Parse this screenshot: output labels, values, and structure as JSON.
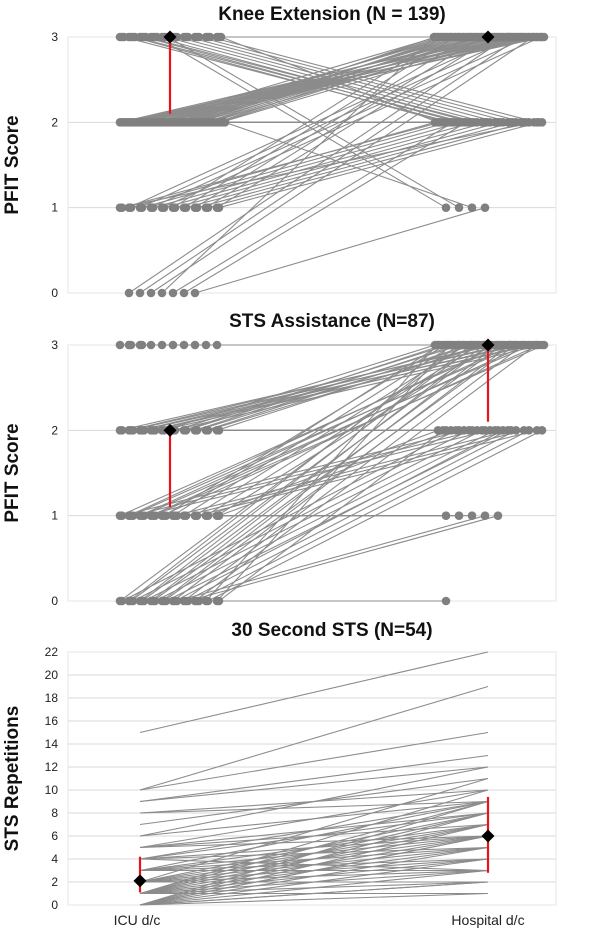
{
  "chart_data": [
    {
      "type": "line",
      "title": "Knee Extension (N = 139)",
      "ylabel": "PFIT Score",
      "xlabel": "",
      "x_categories": [
        "ICU d/c",
        "Hospital d/c"
      ],
      "ylim": [
        0,
        3
      ],
      "yticks": [
        0,
        1,
        2,
        3
      ],
      "grid": true,
      "paired_series": [
        [
          3,
          3
        ],
        [
          3,
          3
        ],
        [
          3,
          3
        ],
        [
          3,
          3
        ],
        [
          3,
          3
        ],
        [
          3,
          3
        ],
        [
          3,
          3
        ],
        [
          3,
          3
        ],
        [
          3,
          3
        ],
        [
          3,
          3
        ],
        [
          3,
          3
        ],
        [
          3,
          3
        ],
        [
          3,
          3
        ],
        [
          3,
          3
        ],
        [
          3,
          3
        ],
        [
          3,
          3
        ],
        [
          3,
          3
        ],
        [
          3,
          3
        ],
        [
          3,
          3
        ],
        [
          3,
          3
        ],
        [
          3,
          2
        ],
        [
          3,
          2
        ],
        [
          3,
          2
        ],
        [
          3,
          2
        ],
        [
          3,
          2
        ],
        [
          3,
          2
        ],
        [
          3,
          2
        ],
        [
          3,
          2
        ],
        [
          3,
          2
        ],
        [
          3,
          2
        ],
        [
          3,
          2
        ],
        [
          3,
          2
        ],
        [
          3,
          1
        ],
        [
          3,
          1
        ],
        [
          2,
          3
        ],
        [
          2,
          3
        ],
        [
          2,
          3
        ],
        [
          2,
          3
        ],
        [
          2,
          3
        ],
        [
          2,
          3
        ],
        [
          2,
          3
        ],
        [
          2,
          3
        ],
        [
          2,
          3
        ],
        [
          2,
          3
        ],
        [
          2,
          3
        ],
        [
          2,
          3
        ],
        [
          2,
          3
        ],
        [
          2,
          3
        ],
        [
          2,
          3
        ],
        [
          2,
          3
        ],
        [
          2,
          3
        ],
        [
          2,
          3
        ],
        [
          2,
          3
        ],
        [
          2,
          3
        ],
        [
          2,
          3
        ],
        [
          2,
          3
        ],
        [
          2,
          3
        ],
        [
          2,
          3
        ],
        [
          2,
          3
        ],
        [
          2,
          3
        ],
        [
          2,
          3
        ],
        [
          2,
          3
        ],
        [
          2,
          3
        ],
        [
          2,
          3
        ],
        [
          2,
          3
        ],
        [
          2,
          3
        ],
        [
          2,
          3
        ],
        [
          2,
          3
        ],
        [
          2,
          3
        ],
        [
          2,
          3
        ],
        [
          2,
          2
        ],
        [
          2,
          2
        ],
        [
          2,
          2
        ],
        [
          2,
          2
        ],
        [
          2,
          2
        ],
        [
          2,
          2
        ],
        [
          2,
          2
        ],
        [
          2,
          2
        ],
        [
          2,
          2
        ],
        [
          2,
          2
        ],
        [
          2,
          2
        ],
        [
          2,
          2
        ],
        [
          2,
          1
        ],
        [
          1,
          3
        ],
        [
          1,
          3
        ],
        [
          1,
          3
        ],
        [
          1,
          3
        ],
        [
          1,
          3
        ],
        [
          1,
          3
        ],
        [
          1,
          3
        ],
        [
          1,
          3
        ],
        [
          1,
          3
        ],
        [
          1,
          2
        ],
        [
          1,
          2
        ],
        [
          1,
          2
        ],
        [
          1,
          2
        ],
        [
          1,
          2
        ],
        [
          1,
          2
        ],
        [
          1,
          2
        ],
        [
          1,
          2
        ],
        [
          1,
          2
        ],
        [
          1,
          2
        ],
        [
          1,
          2
        ],
        [
          0,
          3
        ],
        [
          0,
          3
        ],
        [
          0,
          3
        ],
        [
          0,
          3
        ],
        [
          0,
          2
        ],
        [
          0,
          2
        ],
        [
          0,
          1
        ]
      ],
      "summary": {
        "x": [
          "ICU d/c",
          "Hospital d/c"
        ],
        "mean": [
          3,
          3
        ],
        "error_low": [
          2.1,
          3
        ]
      },
      "colors": {
        "lines": "#8c8c8c",
        "markers": "#808080",
        "summary_marker": "#000000",
        "error_bar": "#e8141b"
      }
    },
    {
      "type": "line",
      "title": "STS Assistance (N=87)",
      "ylabel": "PFIT Score",
      "xlabel": "",
      "x_categories": [
        "ICU d/c",
        "Hospital d/c"
      ],
      "ylim": [
        0,
        3
      ],
      "yticks": [
        0,
        1,
        2,
        3
      ],
      "grid": true,
      "paired_series": [
        [
          3,
          3
        ],
        [
          3,
          3
        ],
        [
          3,
          3
        ],
        [
          3,
          3
        ],
        [
          3,
          3
        ],
        [
          3,
          3
        ],
        [
          3,
          3
        ],
        [
          3,
          3
        ],
        [
          3,
          3
        ],
        [
          3,
          3
        ],
        [
          3,
          3
        ],
        [
          3,
          3
        ],
        [
          2,
          3
        ],
        [
          2,
          3
        ],
        [
          2,
          3
        ],
        [
          2,
          3
        ],
        [
          2,
          3
        ],
        [
          2,
          3
        ],
        [
          2,
          3
        ],
        [
          2,
          3
        ],
        [
          2,
          3
        ],
        [
          2,
          3
        ],
        [
          2,
          3
        ],
        [
          2,
          3
        ],
        [
          2,
          3
        ],
        [
          2,
          3
        ],
        [
          2,
          3
        ],
        [
          2,
          3
        ],
        [
          2,
          3
        ],
        [
          2,
          3
        ],
        [
          2,
          2
        ],
        [
          2,
          2
        ],
        [
          2,
          2
        ],
        [
          2,
          2
        ],
        [
          2,
          2
        ],
        [
          1,
          3
        ],
        [
          1,
          3
        ],
        [
          1,
          3
        ],
        [
          1,
          3
        ],
        [
          1,
          3
        ],
        [
          1,
          3
        ],
        [
          1,
          3
        ],
        [
          1,
          3
        ],
        [
          1,
          3
        ],
        [
          1,
          3
        ],
        [
          1,
          3
        ],
        [
          1,
          3
        ],
        [
          1,
          3
        ],
        [
          1,
          3
        ],
        [
          1,
          2
        ],
        [
          1,
          2
        ],
        [
          1,
          2
        ],
        [
          1,
          2
        ],
        [
          1,
          2
        ],
        [
          1,
          2
        ],
        [
          1,
          2
        ],
        [
          1,
          2
        ],
        [
          1,
          1
        ],
        [
          1,
          1
        ],
        [
          1,
          1
        ],
        [
          0,
          3
        ],
        [
          0,
          3
        ],
        [
          0,
          3
        ],
        [
          0,
          3
        ],
        [
          0,
          3
        ],
        [
          0,
          3
        ],
        [
          0,
          3
        ],
        [
          0,
          3
        ],
        [
          0,
          3
        ],
        [
          0,
          3
        ],
        [
          0,
          3
        ],
        [
          0,
          3
        ],
        [
          0,
          3
        ],
        [
          0,
          3
        ],
        [
          0,
          2
        ],
        [
          0,
          2
        ],
        [
          0,
          2
        ],
        [
          0,
          2
        ],
        [
          0,
          2
        ],
        [
          0,
          2
        ],
        [
          0,
          2
        ],
        [
          0,
          2
        ],
        [
          0,
          2
        ],
        [
          0,
          2
        ],
        [
          0,
          1
        ],
        [
          0,
          1
        ],
        [
          0,
          0
        ]
      ],
      "summary": {
        "x": [
          "ICU d/c",
          "Hospital d/c"
        ],
        "mean": [
          2,
          3
        ],
        "error_low": [
          1.1,
          2.1
        ]
      },
      "colors": {
        "lines": "#8c8c8c",
        "markers": "#808080",
        "summary_marker": "#000000",
        "error_bar": "#e8141b"
      }
    },
    {
      "type": "line",
      "title": "30 Second STS (N=54)",
      "ylabel": "STS Repetitions",
      "xlabel": "",
      "x_categories": [
        "ICU d/c",
        "Hospital d/c"
      ],
      "ylim": [
        0,
        22
      ],
      "yticks": [
        0,
        2,
        4,
        6,
        8,
        10,
        12,
        14,
        16,
        18,
        20,
        22
      ],
      "grid": true,
      "paired_series": [
        [
          15,
          22
        ],
        [
          10,
          19
        ],
        [
          10,
          15
        ],
        [
          9,
          13
        ],
        [
          9,
          12
        ],
        [
          8,
          10
        ],
        [
          8,
          9
        ],
        [
          7,
          11
        ],
        [
          6,
          12
        ],
        [
          6,
          9
        ],
        [
          5,
          8
        ],
        [
          5,
          7
        ],
        [
          5,
          10
        ],
        [
          4,
          9
        ],
        [
          4,
          8
        ],
        [
          4,
          6
        ],
        [
          4,
          5
        ],
        [
          3,
          9
        ],
        [
          3,
          7
        ],
        [
          3,
          6
        ],
        [
          3,
          5
        ],
        [
          3,
          4
        ],
        [
          2,
          11
        ],
        [
          2,
          8
        ],
        [
          2,
          7
        ],
        [
          2,
          6
        ],
        [
          2,
          5
        ],
        [
          2,
          3
        ],
        [
          2,
          2
        ],
        [
          1,
          10
        ],
        [
          1,
          8
        ],
        [
          1,
          6
        ],
        [
          1,
          5
        ],
        [
          1,
          4
        ],
        [
          1,
          3
        ],
        [
          1,
          2
        ],
        [
          1,
          1
        ],
        [
          0,
          9
        ],
        [
          0,
          8
        ],
        [
          0,
          7
        ],
        [
          0,
          6
        ],
        [
          0,
          5
        ],
        [
          0,
          4
        ],
        [
          0,
          3
        ],
        [
          0,
          2
        ],
        [
          0,
          1
        ],
        [
          0,
          6
        ],
        [
          1,
          7
        ],
        [
          2,
          4
        ],
        [
          3,
          3
        ],
        [
          0,
          2
        ],
        [
          1,
          9
        ],
        [
          4,
          3
        ],
        [
          5,
          6
        ]
      ],
      "summary": {
        "x": [
          "ICU d/c",
          "Hospital d/c"
        ],
        "mean": [
          2.1,
          6
        ],
        "error_low": [
          1.1,
          2.8
        ],
        "error_high": [
          4.2,
          9.4
        ]
      },
      "colors": {
        "lines": "#8c8c8c",
        "summary_marker": "#000000",
        "error_bar": "#e8141b"
      }
    }
  ]
}
